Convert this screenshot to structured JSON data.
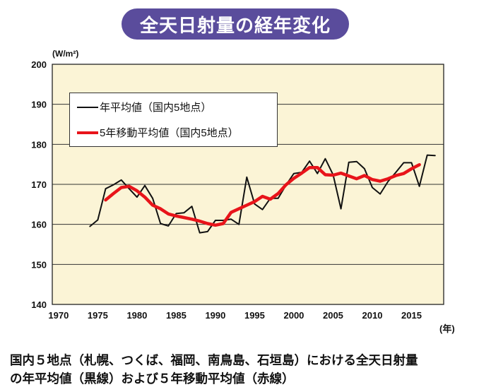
{
  "title": "全天日射量の経年変化",
  "caption": {
    "line1": "国内５地点（札幌、つくば、福岡、南鳥島、石垣島）における全天日射量",
    "line2": "の年平均値（黒線）および５年移動平均値（赤線）"
  },
  "chart_data": {
    "type": "line",
    "title": "全天日射量の経年変化",
    "xlabel": "(年)",
    "ylabel": "(W/m²)",
    "xlim": [
      1969.2,
      2019.1
    ],
    "ylim": [
      140,
      200
    ],
    "xticks": [
      1970,
      1975,
      1980,
      1985,
      1990,
      1995,
      2000,
      2005,
      2010,
      2015
    ],
    "yticks": [
      140,
      150,
      160,
      170,
      180,
      190,
      200
    ],
    "grid": "horizontal",
    "legend_position": "top-left",
    "background": "#fbf4d6",
    "series": [
      {
        "name": "年平均値（国内5地点）",
        "color": "#111111",
        "x": [
          1974,
          1975,
          1976,
          1977,
          1978,
          1979,
          1980,
          1981,
          1982,
          1983,
          1984,
          1985,
          1986,
          1987,
          1988,
          1989,
          1990,
          1991,
          1992,
          1993,
          1994,
          1995,
          1996,
          1997,
          1998,
          1999,
          2000,
          2001,
          2002,
          2003,
          2004,
          2005,
          2006,
          2007,
          2008,
          2009,
          2010,
          2011,
          2012,
          2013,
          2014,
          2015,
          2016,
          2017,
          2018
        ],
        "values": [
          159.5,
          161.1,
          168.9,
          169.9,
          171.1,
          168.9,
          166.8,
          169.7,
          166.5,
          160.2,
          159.6,
          162.7,
          162.9,
          164.5,
          157.9,
          158.2,
          161.0,
          161.0,
          161.3,
          160.0,
          171.8,
          165.1,
          163.7,
          166.5,
          166.5,
          169.8,
          172.7,
          173.0,
          175.8,
          172.7,
          176.4,
          172.4,
          163.9,
          175.5,
          175.7,
          173.9,
          169.2,
          167.6,
          170.7,
          173.0,
          175.4,
          175.4,
          169.5,
          177.3,
          177.2
        ]
      },
      {
        "name": "5年移動平均値（国内5地点）",
        "color": "#e8141a",
        "x": [
          1976,
          1977,
          1978,
          1979,
          1980,
          1981,
          1982,
          1983,
          1984,
          1985,
          1986,
          1987,
          1988,
          1989,
          1990,
          1991,
          1992,
          1993,
          1994,
          1995,
          1996,
          1997,
          1998,
          1999,
          2000,
          2001,
          2002,
          2003,
          2004,
          2005,
          2006,
          2007,
          2008,
          2009,
          2010,
          2011,
          2012,
          2013,
          2014,
          2015,
          2016
        ],
        "values": [
          166.1,
          167.7,
          169.2,
          169.5,
          168.4,
          166.8,
          164.8,
          163.9,
          162.6,
          162.1,
          161.7,
          161.3,
          160.8,
          160.2,
          159.8,
          160.2,
          163.0,
          163.9,
          164.8,
          165.7,
          167.0,
          166.3,
          167.7,
          169.9,
          171.5,
          172.8,
          174.2,
          174.2,
          172.4,
          172.3,
          172.8,
          172.1,
          171.4,
          172.2,
          171.2,
          170.8,
          171.4,
          172.2,
          172.7,
          173.9,
          174.9
        ]
      }
    ]
  }
}
